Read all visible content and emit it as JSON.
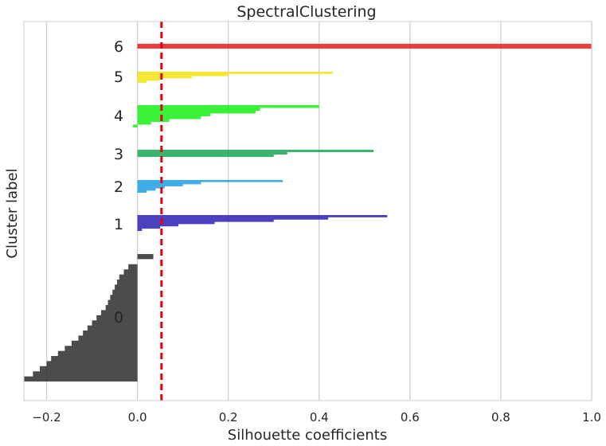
{
  "chart_data": {
    "type": "area",
    "title": "SpectralClustering",
    "xlabel": "Silhouette coefficients",
    "ylabel": "Cluster label",
    "xlim": [
      -0.25,
      1.0
    ],
    "xticks": [
      -0.2,
      0.0,
      0.2,
      0.4,
      0.6,
      0.8,
      1.0
    ],
    "xtick_labels": [
      "−0.2",
      "0.0",
      "0.2",
      "0.4",
      "0.6",
      "0.8",
      "1.0"
    ],
    "grid": "vertical",
    "average_silhouette_score": 0.053,
    "average_line_color": "#e3000f",
    "clusters": [
      {
        "label": "0",
        "color": "#333333",
        "values": [
          0.035,
          0.0,
          -0.02,
          -0.03,
          -0.04,
          -0.045,
          -0.05,
          -0.055,
          -0.06,
          -0.065,
          -0.07,
          -0.08,
          -0.09,
          -0.1,
          -0.11,
          -0.12,
          -0.13,
          -0.145,
          -0.16,
          -0.175,
          -0.19,
          -0.2,
          -0.215,
          -0.23,
          -0.25
        ]
      },
      {
        "label": "1",
        "color": "#3425b5",
        "values": [
          0.55,
          0.42,
          0.3,
          0.17,
          0.09,
          0.05,
          0.01
        ]
      },
      {
        "label": "2",
        "color": "#26a3e0",
        "values": [
          0.32,
          0.14,
          0.1,
          0.06,
          0.04,
          0.02
        ]
      },
      {
        "label": "3",
        "color": "#1fab5c",
        "values": [
          0.52,
          0.33,
          0.3
        ]
      },
      {
        "label": "4",
        "color": "#1ef01e",
        "values": [
          0.4,
          0.27,
          0.26,
          0.16,
          0.14,
          0.07,
          0.03,
          -0.01
        ]
      },
      {
        "label": "5",
        "color": "#f2e41a",
        "values": [
          0.43,
          0.2,
          0.12,
          0.05,
          0.02
        ]
      },
      {
        "label": "6",
        "color": "#ef2121",
        "values": [
          1.0
        ]
      }
    ]
  }
}
